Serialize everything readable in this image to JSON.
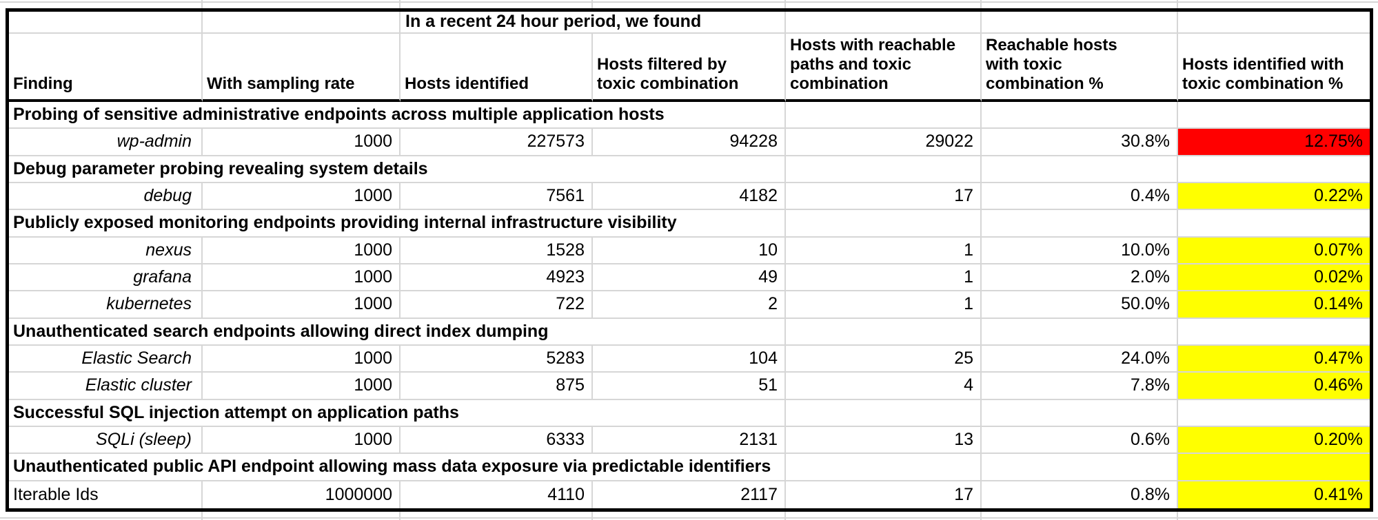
{
  "chart_data": {
    "type": "table",
    "banner": "In a recent 24 hour period, we found",
    "columns": [
      "Finding",
      "With sampling rate",
      "Hosts identified",
      "Hosts filtered by\ntoxic combination",
      "Hosts with reachable\npaths and toxic\ncombination",
      "Reachable hosts\nwith toxic\ncombination %",
      "Hosts identified with\ntoxic combination %"
    ],
    "highlight_colors": {
      "red": "#ff0000",
      "yellow": "#ffff00"
    },
    "grid": true,
    "sections": [
      {
        "title": "Probing of sensitive administrative endpoints across multiple application hosts",
        "rows": [
          {
            "finding_style": "italic-right",
            "final_highlight": "red",
            "cells": [
              "wp-admin",
              "1000",
              "227573",
              "94228",
              "29022",
              "30.8%",
              "12.75%"
            ]
          }
        ]
      },
      {
        "title": "Debug parameter probing revealing system details",
        "rows": [
          {
            "finding_style": "italic-right",
            "final_highlight": "yellow",
            "cells": [
              "debug",
              "1000",
              "7561",
              "4182",
              "17",
              "0.4%",
              "0.22%"
            ]
          }
        ]
      },
      {
        "title": "Publicly exposed monitoring endpoints providing internal infrastructure visibility",
        "rows": [
          {
            "finding_style": "italic-right",
            "final_highlight": "yellow",
            "cells": [
              "nexus",
              "1000",
              "1528",
              "10",
              "1",
              "10.0%",
              "0.07%"
            ]
          },
          {
            "finding_style": "italic-right",
            "final_highlight": "yellow",
            "cells": [
              "grafana",
              "1000",
              "4923",
              "49",
              "1",
              "2.0%",
              "0.02%"
            ]
          },
          {
            "finding_style": "italic-right",
            "final_highlight": "yellow",
            "cells": [
              "kubernetes",
              "1000",
              "722",
              "2",
              "1",
              "50.0%",
              "0.14%"
            ]
          }
        ]
      },
      {
        "title": "Unauthenticated search endpoints allowing direct index dumping",
        "rows": [
          {
            "finding_style": "italic-right",
            "final_highlight": "yellow",
            "cells": [
              "Elastic Search",
              "1000",
              "5283",
              "104",
              "25",
              "24.0%",
              "0.47%"
            ]
          },
          {
            "finding_style": "italic-right",
            "final_highlight": "yellow",
            "cells": [
              "Elastic cluster",
              "1000",
              "875",
              "51",
              "4",
              "7.8%",
              "0.46%"
            ]
          }
        ]
      },
      {
        "title": "Successful SQL injection attempt on application paths",
        "rows": [
          {
            "finding_style": "italic-right",
            "final_highlight": "yellow",
            "cells": [
              "SQLi (sleep)",
              "1000",
              "6333",
              "2131",
              "13",
              "0.6%",
              "0.20%"
            ]
          }
        ]
      },
      {
        "title": "Unauthenticated public API endpoint allowing mass data exposure via predictable identifiers",
        "title_final_highlight": "yellow",
        "rows": [
          {
            "finding_style": "plain-left",
            "final_highlight": "yellow",
            "cells": [
              "Iterable Ids",
              "1000000",
              "4110",
              "2117",
              "17",
              "0.8%",
              "0.41%"
            ]
          }
        ]
      }
    ]
  }
}
